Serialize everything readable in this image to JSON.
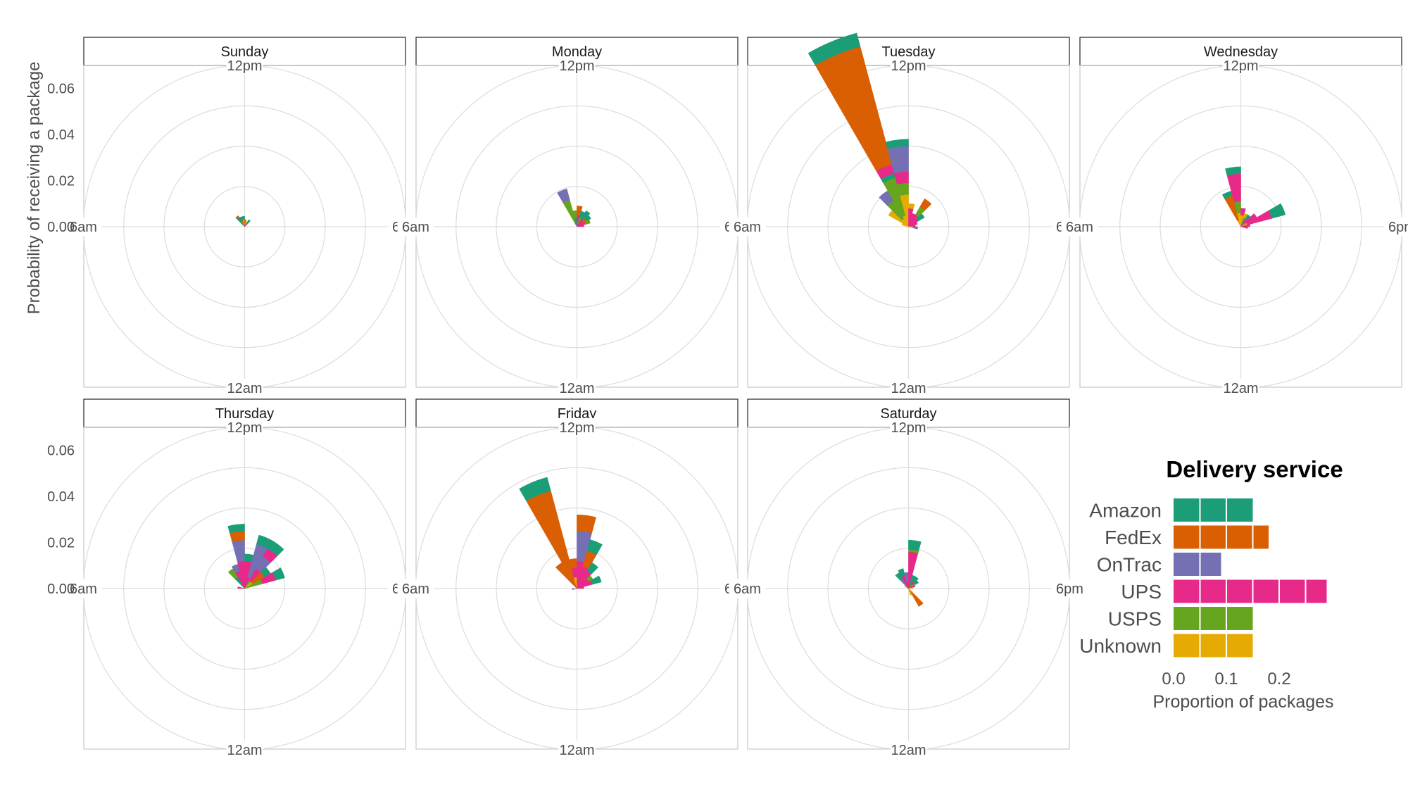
{
  "chart_data": {
    "type": "bar",
    "subtype": "polar-stacked-rose-faceted",
    "ylabel": "Probability of receiving a package",
    "y_ticks": [
      "0.00",
      "0.02",
      "0.04",
      "0.06"
    ],
    "ylim": [
      0,
      0.07
    ],
    "angle_labels": {
      "top": "12pm",
      "right": "6pm",
      "bottom": "12am",
      "left": "6am"
    },
    "colors": {
      "Amazon": "#1b9e77",
      "FedEx": "#d95f02",
      "OnTrac": "#7570b3",
      "UPS": "#e7298a",
      "USPS": "#66a61e",
      "Unknown": "#e6ab02"
    },
    "facets": [
      {
        "name": "Sunday",
        "bars": [
          {
            "hour": 9.5,
            "stack": [
              [
                "Amazon",
                0.005
              ],
              [
                "FedEx",
                0.0005
              ]
            ]
          },
          {
            "hour": 10.5,
            "stack": [
              [
                "Unknown",
                0.001
              ],
              [
                "USPS",
                0.001
              ],
              [
                "FedEx",
                0.001
              ],
              [
                "Amazon",
                0.0015
              ]
            ]
          },
          {
            "hour": 11.5,
            "stack": [
              [
                "USPS",
                0.001
              ],
              [
                "Unknown",
                0.002
              ],
              [
                "Amazon",
                0.0015
              ]
            ]
          },
          {
            "hour": 12.5,
            "stack": [
              [
                "UPS",
                0.001
              ],
              [
                "FedEx",
                0.002
              ]
            ]
          },
          {
            "hour": 13.5,
            "stack": [
              [
                "USPS",
                0.001
              ],
              [
                "Unknown",
                0.001
              ]
            ]
          },
          {
            "hour": 14.5,
            "stack": [
              [
                "UPS",
                0.0015
              ],
              [
                "Amazon",
                0.002
              ]
            ]
          }
        ]
      },
      {
        "name": "Monday",
        "bars": [
          {
            "hour": 10.5,
            "stack": [
              [
                "Amazon",
                0.002
              ],
              [
                "USPS",
                0.01
              ],
              [
                "OnTrac",
                0.005
              ]
            ]
          },
          {
            "hour": 11.5,
            "stack": [
              [
                "Amazon",
                0.004
              ],
              [
                "USPS",
                0.003
              ]
            ]
          },
          {
            "hour": 12.5,
            "stack": [
              [
                "UPS",
                0.005
              ],
              [
                "FedEx",
                0.004
              ]
            ]
          },
          {
            "hour": 13.5,
            "stack": [
              [
                "USPS",
                0.004
              ],
              [
                "Amazon",
                0.003
              ]
            ]
          },
          {
            "hour": 14.5,
            "stack": [
              [
                "UPS",
                0.004
              ],
              [
                "Amazon",
                0.004
              ]
            ]
          },
          {
            "hour": 15.5,
            "stack": [
              [
                "UPS",
                0.003
              ],
              [
                "FedEx",
                0.002
              ],
              [
                "Amazon",
                0.002
              ]
            ]
          },
          {
            "hour": 16.5,
            "stack": [
              [
                "UPS",
                0.004
              ],
              [
                "USPS",
                0.002
              ]
            ]
          },
          {
            "hour": 17.5,
            "stack": [
              [
                "UPS",
                0.003
              ]
            ]
          }
        ]
      },
      {
        "name": "Tuesday",
        "bars": [
          {
            "hour": 8.5,
            "stack": [
              [
                "Unknown",
                0.01
              ]
            ]
          },
          {
            "hour": 9.5,
            "stack": [
              [
                "Unknown",
                0.004
              ],
              [
                "USPS",
                0.009
              ],
              [
                "OnTrac",
                0.005
              ]
            ]
          },
          {
            "hour": 10.5,
            "stack": [
              [
                "Unknown",
                0.005
              ],
              [
                "USPS",
                0.017
              ],
              [
                "Amazon",
                0.002
              ],
              [
                "UPS",
                0.004
              ],
              [
                "FedEx",
                0.053
              ],
              [
                "Amazon",
                0.006
              ]
            ]
          },
          {
            "hour": 11.5,
            "stack": [
              [
                "Unknown",
                0.014
              ],
              [
                "USPS",
                0.005
              ],
              [
                "UPS",
                0.005
              ],
              [
                "OnTrac",
                0.011
              ],
              [
                "Amazon",
                0.003
              ]
            ]
          },
          {
            "hour": 12.5,
            "stack": [
              [
                "UPS",
                0.008
              ],
              [
                "Unknown",
                0.002
              ]
            ]
          },
          {
            "hour": 13.5,
            "stack": [
              [
                "UPS",
                0.006
              ]
            ]
          },
          {
            "hour": 14.5,
            "stack": [
              [
                "UPS",
                0.006
              ],
              [
                "USPS",
                0.004
              ],
              [
                "FedEx",
                0.004
              ]
            ]
          },
          {
            "hour": 15.5,
            "stack": [
              [
                "UPS",
                0.005
              ],
              [
                "Amazon",
                0.003
              ]
            ]
          },
          {
            "hour": 16.5,
            "stack": [
              [
                "UPS",
                0.004
              ]
            ]
          },
          {
            "hour": 17.5,
            "stack": [
              [
                "UPS",
                0.003
              ]
            ]
          },
          {
            "hour": 18.5,
            "stack": [
              [
                "Unknown",
                0.002
              ],
              [
                "OnTrac",
                0.002
              ]
            ]
          },
          {
            "hour": 7.5,
            "stack": [
              [
                "Unknown",
                0.003
              ]
            ]
          }
        ]
      },
      {
        "name": "Wednesday",
        "bars": [
          {
            "hour": 10.5,
            "stack": [
              [
                "Unknown",
                0.003
              ],
              [
                "FedEx",
                0.011
              ],
              [
                "Amazon",
                0.002
              ]
            ]
          },
          {
            "hour": 11.5,
            "stack": [
              [
                "Unknown",
                0.006
              ],
              [
                "USPS",
                0.005
              ],
              [
                "UPS",
                0.012
              ],
              [
                "Amazon",
                0.003
              ]
            ]
          },
          {
            "hour": 12.5,
            "stack": [
              [
                "Unknown",
                0.005
              ],
              [
                "UPS",
                0.003
              ]
            ]
          },
          {
            "hour": 13.5,
            "stack": [
              [
                "USPS",
                0.004
              ],
              [
                "Unknown",
                0.002
              ]
            ]
          },
          {
            "hour": 14.5,
            "stack": [
              [
                "UPS",
                0.004
              ],
              [
                "Amazon",
                0.002
              ]
            ]
          },
          {
            "hour": 15.5,
            "stack": [
              [
                "OnTrac",
                0.003
              ],
              [
                "UPS",
                0.005
              ]
            ]
          },
          {
            "hour": 16.5,
            "stack": [
              [
                "Unknown",
                0.003
              ],
              [
                "UPS",
                0.011
              ],
              [
                "Amazon",
                0.006
              ]
            ]
          },
          {
            "hour": 17.5,
            "stack": [
              [
                "UPS",
                0.004
              ]
            ]
          },
          {
            "hour": 18.5,
            "stack": [
              [
                "UPS",
                0.003
              ]
            ]
          }
        ]
      },
      {
        "name": "Thursday",
        "bars": [
          {
            "hour": 6.5,
            "stack": [
              [
                "UPS",
                0.003
              ]
            ]
          },
          {
            "hour": 9.5,
            "stack": [
              [
                "Amazon",
                0.006
              ],
              [
                "USPS",
                0.004
              ]
            ]
          },
          {
            "hour": 10.5,
            "stack": [
              [
                "UPS",
                0.008
              ],
              [
                "OnTrac",
                0.003
              ]
            ]
          },
          {
            "hour": 11.5,
            "stack": [
              [
                "UPS",
                0.012
              ],
              [
                "OnTrac",
                0.009
              ],
              [
                "FedEx",
                0.004
              ],
              [
                "Amazon",
                0.003
              ]
            ]
          },
          {
            "hour": 12.5,
            "stack": [
              [
                "UPS",
                0.012
              ],
              [
                "Amazon",
                0.003
              ]
            ]
          },
          {
            "hour": 13.5,
            "stack": [
              [
                "UPS",
                0.005
              ],
              [
                "OnTrac",
                0.015
              ],
              [
                "Amazon",
                0.004
              ]
            ]
          },
          {
            "hour": 14.5,
            "stack": [
              [
                "USPS",
                0.004
              ],
              [
                "UPS",
                0.006
              ],
              [
                "OnTrac",
                0.006
              ],
              [
                "UPS",
                0.004
              ],
              [
                "Amazon",
                0.004
              ]
            ]
          },
          {
            "hour": 15.5,
            "stack": [
              [
                "Unknown",
                0.004
              ],
              [
                "FedEx",
                0.006
              ],
              [
                "Amazon",
                0.003
              ]
            ]
          },
          {
            "hour": 16.5,
            "stack": [
              [
                "USPS",
                0.008
              ],
              [
                "UPS",
                0.006
              ],
              [
                "Amazon",
                0.004
              ]
            ]
          }
        ]
      },
      {
        "name": "Friday",
        "bars": [
          {
            "hour": 9.5,
            "stack": [
              [
                "FedEx",
                0.013
              ]
            ]
          },
          {
            "hour": 10.5,
            "stack": [
              [
                "FedEx",
                0.044
              ],
              [
                "Amazon",
                0.006
              ]
            ]
          },
          {
            "hour": 11.5,
            "stack": [
              [
                "Unknown",
                0.005
              ],
              [
                "UPS",
                0.004
              ],
              [
                "FedEx",
                0.004
              ]
            ]
          },
          {
            "hour": 12.5,
            "stack": [
              [
                "UPS",
                0.012
              ],
              [
                "OnTrac",
                0.013
              ],
              [
                "FedEx",
                0.007
              ]
            ]
          },
          {
            "hour": 13.5,
            "stack": [
              [
                "UPS",
                0.01
              ],
              [
                "FedEx",
                0.007
              ],
              [
                "Amazon",
                0.005
              ]
            ]
          },
          {
            "hour": 14.5,
            "stack": [
              [
                "UPS",
                0.009
              ],
              [
                "Amazon",
                0.004
              ]
            ]
          },
          {
            "hour": 15.5,
            "stack": [
              [
                "UPS",
                0.006
              ],
              [
                "USPS",
                0.002
              ]
            ]
          },
          {
            "hour": 16.5,
            "stack": [
              [
                "UPS",
                0.007
              ],
              [
                "Amazon",
                0.004
              ]
            ]
          },
          {
            "hour": 17.5,
            "stack": [
              [
                "UPS",
                0.003
              ]
            ]
          },
          {
            "hour": 5.5,
            "stack": [
              [
                "OnTrac",
                0.002
              ]
            ]
          }
        ]
      },
      {
        "name": "Saturday",
        "bars": [
          {
            "hour": 8.5,
            "stack": [
              [
                "Unknown",
                0.002
              ]
            ]
          },
          {
            "hour": 9.5,
            "stack": [
              [
                "OnTrac",
                0.005
              ],
              [
                "Amazon",
                0.003
              ]
            ]
          },
          {
            "hour": 10.5,
            "stack": [
              [
                "UPS",
                0.006
              ],
              [
                "Amazon",
                0.003
              ]
            ]
          },
          {
            "hour": 11.5,
            "stack": [
              [
                "UPS",
                0.003
              ],
              [
                "OnTrac",
                0.004
              ]
            ]
          },
          {
            "hour": 12.5,
            "stack": [
              [
                "UPS",
                0.016
              ],
              [
                "USPS",
                0.001
              ],
              [
                "Amazon",
                0.004
              ]
            ]
          },
          {
            "hour": 13.5,
            "stack": [
              [
                "Amazon",
                0.006
              ]
            ]
          },
          {
            "hour": 14.5,
            "stack": [
              [
                "UPS",
                0.004
              ],
              [
                "Amazon",
                0.002
              ]
            ]
          },
          {
            "hour": 15.5,
            "stack": [
              [
                "USPS",
                0.003
              ],
              [
                "Amazon",
                0.002
              ]
            ]
          },
          {
            "hour": 16.5,
            "stack": [
              [
                "UPS",
                0.003
              ]
            ]
          },
          {
            "hour": 17.5,
            "stack": [
              [
                "Unknown",
                0.002
              ]
            ]
          },
          {
            "hour": 21.5,
            "stack": [
              [
                "FedEx",
                0.009
              ]
            ]
          },
          {
            "hour": 22.5,
            "stack": [
              [
                "Unknown",
                0.003
              ]
            ]
          }
        ]
      }
    ],
    "legend": {
      "title": "Delivery service",
      "xlabel": "Proportion of packages",
      "x_ticks": [
        "0.0",
        "0.1",
        "0.2"
      ],
      "xlim": [
        0,
        0.3
      ],
      "items": [
        {
          "name": "Amazon",
          "value": 0.15
        },
        {
          "name": "FedEx",
          "value": 0.18
        },
        {
          "name": "OnTrac",
          "value": 0.09
        },
        {
          "name": "UPS",
          "value": 0.29
        },
        {
          "name": "USPS",
          "value": 0.15
        },
        {
          "name": "Unknown",
          "value": 0.15
        }
      ]
    }
  }
}
